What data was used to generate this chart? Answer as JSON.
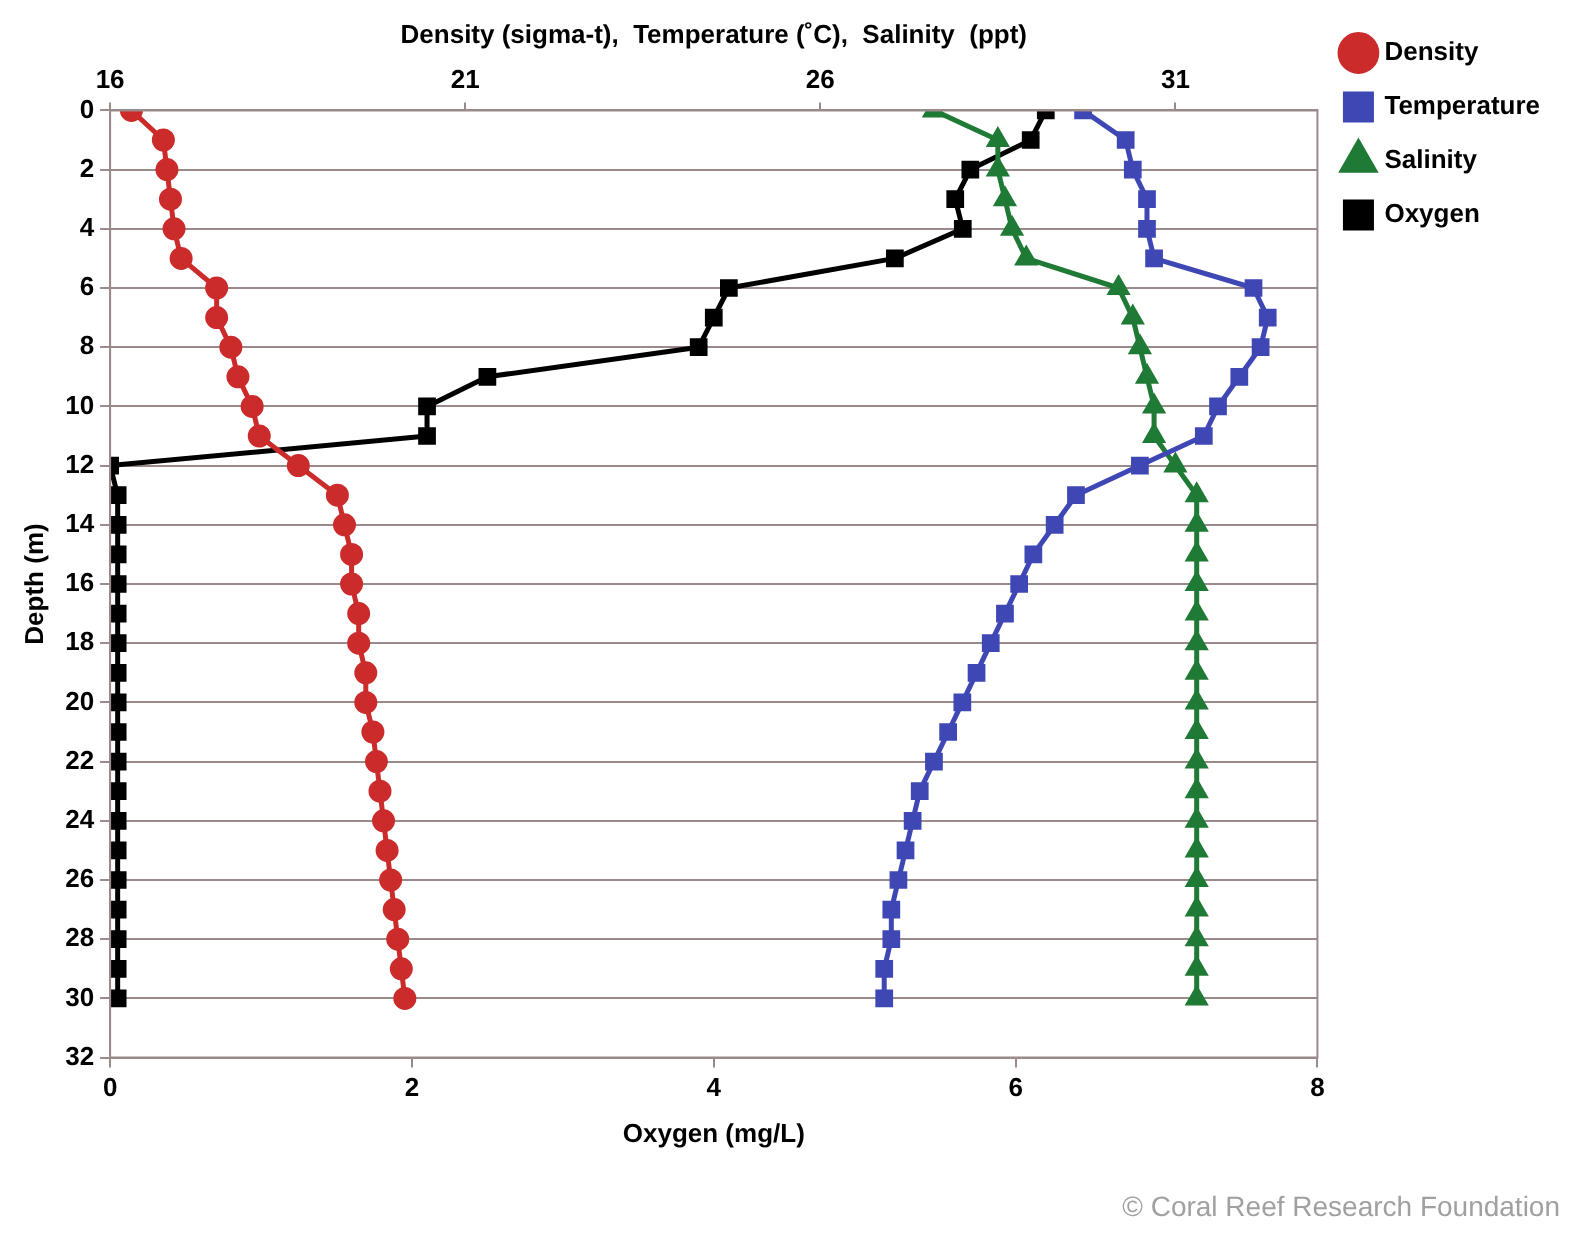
{
  "chart_data": {
    "type": "line",
    "xlabel": "Oxygen (mg/L)",
    "x2label": "Density (sigma-t),  Temperature (˚C),  Salinity  (ppt)",
    "ylabel": "Depth (m)",
    "xlim": [
      0,
      8
    ],
    "xticks": [
      0,
      2,
      4,
      6,
      8
    ],
    "x2lim": [
      16,
      33
    ],
    "x2ticks": [
      16,
      21,
      26,
      31
    ],
    "ylim": [
      32,
      0
    ],
    "yticks": [
      0,
      2,
      4,
      6,
      8,
      10,
      12,
      14,
      16,
      18,
      20,
      22,
      24,
      26,
      28,
      30,
      32
    ],
    "grid": "y",
    "legend": "right",
    "line_style": "solid",
    "series": [
      {
        "name": "Density",
        "color": "#cc2b2b",
        "marker": "circle",
        "axis": "x2",
        "x": [
          16.3,
          16.75,
          16.8,
          16.85,
          16.9,
          17.0,
          17.5,
          17.5,
          17.7,
          17.8,
          18.0,
          18.1,
          18.65,
          19.2,
          19.3,
          19.4,
          19.4,
          19.5,
          19.5,
          19.6,
          19.6,
          19.7,
          19.75,
          19.8,
          19.85,
          19.9,
          19.95,
          20.0,
          20.05,
          20.1,
          20.15
        ],
        "values": [
          0,
          1,
          2,
          3,
          4,
          5,
          6,
          7,
          8,
          9,
          10,
          11,
          12,
          13,
          14,
          15,
          16,
          17,
          18,
          19,
          20,
          21,
          22,
          23,
          24,
          25,
          26,
          27,
          28,
          29,
          30
        ]
      },
      {
        "name": "Temperature",
        "color": "#3f47b5",
        "marker": "square",
        "axis": "x2",
        "x": [
          29.7,
          30.3,
          30.4,
          30.6,
          30.6,
          30.7,
          32.1,
          32.3,
          32.2,
          31.9,
          31.6,
          31.4,
          30.5,
          29.6,
          29.3,
          29.0,
          28.8,
          28.6,
          28.4,
          28.2,
          28.0,
          27.8,
          27.6,
          27.4,
          27.3,
          27.2,
          27.1,
          27.0,
          27.0,
          26.9,
          26.9
        ],
        "values": [
          0,
          1,
          2,
          3,
          4,
          5,
          6,
          7,
          8,
          9,
          10,
          11,
          12,
          13,
          14,
          15,
          16,
          17,
          18,
          19,
          20,
          21,
          22,
          23,
          24,
          25,
          26,
          27,
          28,
          29,
          30
        ]
      },
      {
        "name": "Salinity",
        "color": "#1f7a35",
        "marker": "triangle",
        "axis": "x2",
        "x": [
          27.6,
          28.5,
          28.5,
          28.6,
          28.7,
          28.9,
          30.2,
          30.4,
          30.5,
          30.6,
          30.7,
          30.7,
          31.0,
          31.3,
          31.3,
          31.3,
          31.3,
          31.3,
          31.3,
          31.3,
          31.3,
          31.3,
          31.3,
          31.3,
          31.3,
          31.3,
          31.3,
          31.3,
          31.3,
          31.3,
          31.3
        ],
        "values": [
          0,
          1,
          2,
          3,
          4,
          5,
          6,
          7,
          8,
          9,
          10,
          11,
          12,
          13,
          14,
          15,
          16,
          17,
          18,
          19,
          20,
          21,
          22,
          23,
          24,
          25,
          26,
          27,
          28,
          29,
          30
        ]
      },
      {
        "name": "Oxygen",
        "color": "#000000",
        "marker": "square",
        "x": [
          6.2,
          6.1,
          5.7,
          5.6,
          5.65,
          5.2,
          4.1,
          4.0,
          3.9,
          2.5,
          2.1,
          2.1,
          0,
          0.05,
          0.05,
          0.05,
          0.05,
          0.05,
          0.05,
          0.05,
          0.05,
          0.05,
          0.05,
          0.05,
          0.05,
          0.05,
          0.05,
          0.05,
          0.05,
          0.05,
          0.05
        ],
        "values": [
          0,
          1,
          2,
          3,
          4,
          5,
          6,
          7,
          8,
          9,
          10,
          11,
          12,
          13,
          14,
          15,
          16,
          17,
          18,
          19,
          20,
          21,
          22,
          23,
          24,
          25,
          26,
          27,
          28,
          29,
          30
        ]
      }
    ],
    "annotations": [
      "© Coral Reef Research Foundation"
    ]
  }
}
